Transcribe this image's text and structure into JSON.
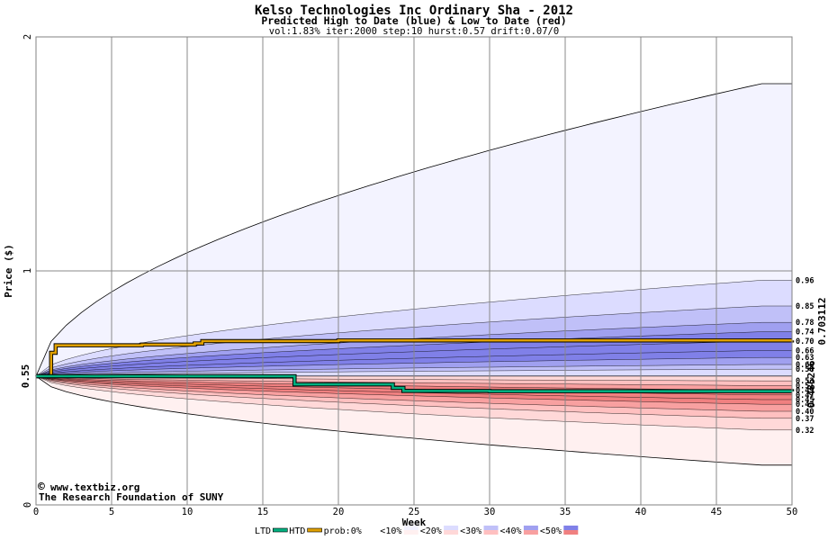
{
  "chart_data": {
    "type": "area",
    "title": "Kelso Technologies Inc Ordinary Sha - 2012",
    "subtitle": "Predicted High to Date (blue) &  Low to Date (red)",
    "params": "vol:1.83% iter:2000 step:10 hurst:0.57 drift:0.07/0",
    "xlabel": "Week",
    "ylabel": "Price ($)",
    "xlim": [
      0,
      50
    ],
    "ylim": [
      0,
      2
    ],
    "x_ticks": [
      "0",
      "5",
      "10",
      "15",
      "20",
      "25",
      "30",
      "35",
      "40",
      "45",
      "50"
    ],
    "y_ticks": [
      "0",
      "1",
      "2"
    ],
    "start_label": "0.55",
    "start_value": 0.55,
    "grid": true,
    "credit_line1": "www.textbiz.org",
    "credit_line2": "The Research Foundation of SUNY",
    "upper_band_labels": [
      "0.96",
      "0.85",
      "0.78",
      "0.74",
      "0.70",
      "0.66",
      "0.63",
      "0.60",
      "0.58"
    ],
    "lower_band_labels": [
      "0.53",
      "0.51",
      "0.49",
      "0.47",
      "0.45",
      "0.43",
      "0.40",
      "0.37",
      "0.32"
    ],
    "upper_bands": [
      {
        "prob": "<10%",
        "end": 1.8
      },
      {
        "prob": "<20%",
        "end": 0.96
      },
      {
        "prob": "<30%",
        "end": 0.85
      },
      {
        "prob": "<40%",
        "end": 0.78
      },
      {
        "prob": "<50%",
        "end": 0.74
      },
      {
        "prob": "<50%",
        "end": 0.7
      },
      {
        "prob": "<50%",
        "end": 0.66
      },
      {
        "prob": "<40%",
        "end": 0.63
      },
      {
        "prob": "<30%",
        "end": 0.6
      },
      {
        "prob": "<20%",
        "end": 0.58
      }
    ],
    "lower_bands": [
      {
        "prob": "<10%",
        "end": 0.17
      },
      {
        "prob": "<20%",
        "end": 0.32
      },
      {
        "prob": "<30%",
        "end": 0.37
      },
      {
        "prob": "<40%",
        "end": 0.4
      },
      {
        "prob": "<50%",
        "end": 0.43
      },
      {
        "prob": "<50%",
        "end": 0.45
      },
      {
        "prob": "<50%",
        "end": 0.47
      },
      {
        "prob": "<40%",
        "end": 0.49
      },
      {
        "prob": "<30%",
        "end": 0.51
      },
      {
        "prob": "<20%",
        "end": 0.53
      }
    ],
    "series": [
      {
        "name": "HTD",
        "color": "#e0a000",
        "final_label": "0.703112",
        "x": [
          0,
          1,
          1.3,
          7,
          10.5,
          11,
          14,
          20,
          30,
          40,
          50
        ],
        "y": [
          0.55,
          0.65,
          0.682,
          0.685,
          0.69,
          0.7,
          0.7,
          0.703,
          0.703,
          0.703,
          0.703112
        ]
      },
      {
        "name": "LTD",
        "color": "#00b080",
        "final_label": "0.485246",
        "x": [
          0,
          5,
          10,
          17,
          17.1,
          23,
          23.6,
          24.3,
          30,
          40,
          50
        ],
        "y": [
          0.55,
          0.55,
          0.55,
          0.55,
          0.515,
          0.515,
          0.5,
          0.487,
          0.486,
          0.486,
          0.485246
        ]
      }
    ],
    "legend": {
      "placement": "bottom",
      "items": [
        {
          "label": "LTD",
          "color": "#00b080",
          "kind": "line"
        },
        {
          "label": "HTD",
          "color": "#e0a000",
          "kind": "line"
        },
        {
          "label": "prob:0%",
          "colors": [
            "#ffffff",
            "#ffffff"
          ],
          "kind": "swatch"
        },
        {
          "label": "<10%",
          "colors": [
            "#f3f3ff",
            "#fff0f0"
          ],
          "kind": "swatch"
        },
        {
          "label": "<20%",
          "colors": [
            "#dcdcff",
            "#ffd8d8"
          ],
          "kind": "swatch"
        },
        {
          "label": "<30%",
          "colors": [
            "#c0c0f8",
            "#ffc0c0"
          ],
          "kind": "swatch"
        },
        {
          "label": "<40%",
          "colors": [
            "#a0a0f0",
            "#f8a0a0"
          ],
          "kind": "swatch"
        },
        {
          "label": "<50%",
          "colors": [
            "#8080e8",
            "#f08080"
          ],
          "kind": "swatch"
        }
      ]
    },
    "colors": {
      "upper": [
        "#f3f3ff",
        "#dcdcff",
        "#c0c0f8",
        "#a0a0f0",
        "#8080e8",
        "#8080e8",
        "#8080e8",
        "#a0a0f0",
        "#c0c0f8",
        "#dcdcff"
      ],
      "lower": [
        "#fff0f0",
        "#ffd8d8",
        "#ffc0c0",
        "#f8a0a0",
        "#f08080",
        "#f08080",
        "#f08080",
        "#f8a0a0",
        "#ffc0c0",
        "#ffd8d8"
      ],
      "credit": "#000066"
    }
  }
}
